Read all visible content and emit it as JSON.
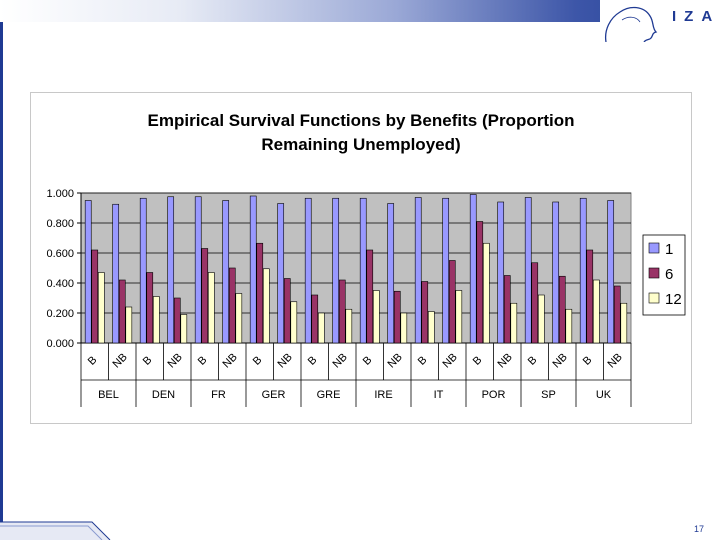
{
  "logo": {
    "text": "IZA"
  },
  "slide": {
    "page_number": "17"
  },
  "chart_data": {
    "type": "bar",
    "title_lines": [
      "Empirical Survival Functions by Benefits (Proportion",
      "Remaining Unemployed)"
    ],
    "countries": [
      "BEL",
      "DEN",
      "FR",
      "GER",
      "GRE",
      "IRE",
      "IT",
      "POR",
      "SP",
      "UK"
    ],
    "categories": [
      "B",
      "NB",
      "B",
      "NB",
      "B",
      "NB",
      "B",
      "NB",
      "B",
      "NB",
      "B",
      "NB",
      "B",
      "NB",
      "B",
      "NB",
      "B",
      "NB",
      "B",
      "NB"
    ],
    "series": [
      {
        "name": "1",
        "color": "#9999ff",
        "values": [
          0.95,
          0.925,
          0.965,
          0.975,
          0.975,
          0.95,
          0.98,
          0.93,
          0.965,
          0.965,
          0.965,
          0.93,
          0.97,
          0.965,
          0.99,
          0.94,
          0.97,
          0.94,
          0.965,
          0.95
        ]
      },
      {
        "name": "6",
        "color": "#993366",
        "values": [
          0.62,
          0.42,
          0.47,
          0.3,
          0.63,
          0.5,
          0.665,
          0.43,
          0.32,
          0.42,
          0.62,
          0.345,
          0.41,
          0.55,
          0.81,
          0.45,
          0.535,
          0.445,
          0.62,
          0.38
        ]
      },
      {
        "name": "12",
        "color": "#ffffcc",
        "values": [
          0.47,
          0.24,
          0.31,
          0.19,
          0.47,
          0.33,
          0.495,
          0.275,
          0.2,
          0.225,
          0.35,
          0.2,
          0.21,
          0.35,
          0.665,
          0.265,
          0.32,
          0.225,
          0.42,
          0.265
        ]
      }
    ],
    "ylim": [
      0,
      1
    ],
    "yticks": [
      "0.000",
      "0.200",
      "0.400",
      "0.600",
      "0.800",
      "1.000"
    ],
    "legend_position": "right",
    "plot_background": "#c0c0c0"
  }
}
